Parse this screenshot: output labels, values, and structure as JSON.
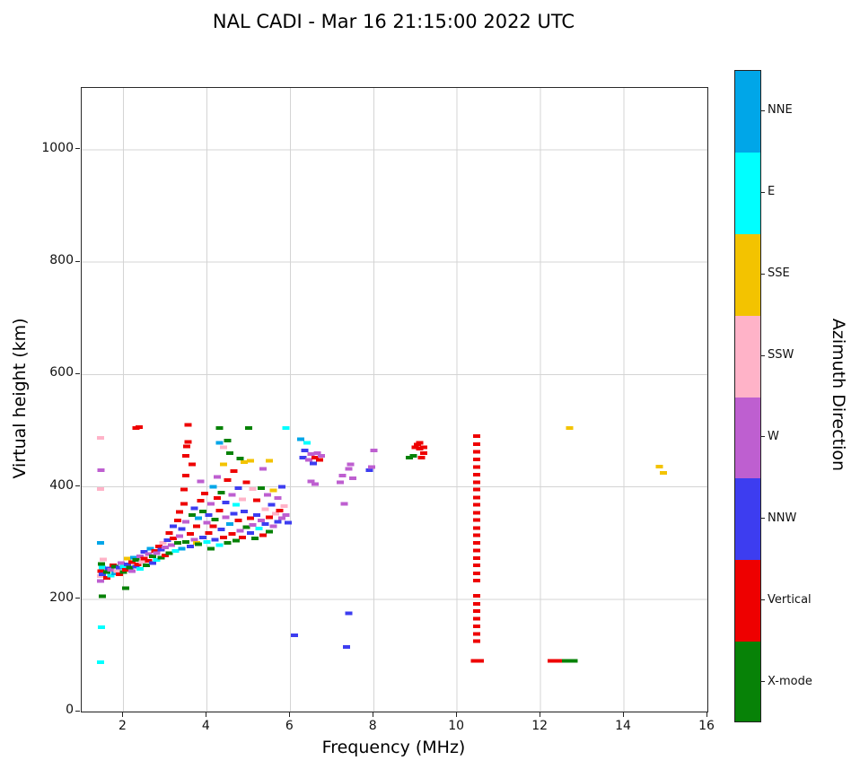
{
  "chart_data": {
    "type": "scatter",
    "title": "NAL CADI - Mar 16 21:15:00 2022 UTC",
    "xlabel": "Frequency (MHz)",
    "ylabel": "Virtual height (km)",
    "xlim": [
      1,
      16
    ],
    "ylim": [
      0,
      1110
    ],
    "xticks": [
      2,
      4,
      6,
      8,
      10,
      12,
      14,
      16
    ],
    "yticks": [
      0,
      200,
      400,
      600,
      800,
      1000
    ],
    "grid": true,
    "marker": "horizontal-dash",
    "legend": {
      "title": "Azimuth Direction",
      "position": "right-colorbar",
      "entries": [
        {
          "label": "NNE",
          "color": "#00A6E8"
        },
        {
          "label": "E",
          "color": "#00FFFF"
        },
        {
          "label": "SSE",
          "color": "#F3C300"
        },
        {
          "label": "SSW",
          "color": "#FFB3C8"
        },
        {
          "label": "W",
          "color": "#BE5FD0"
        },
        {
          "label": "NNW",
          "color": "#3D3DF0"
        },
        {
          "label": "Vertical",
          "color": "#EE0000"
        },
        {
          "label": "X-mode",
          "color": "#078207"
        }
      ]
    },
    "points": [
      [
        1.45,
        88,
        "E"
      ],
      [
        1.47,
        150,
        "E"
      ],
      [
        1.5,
        205,
        "X-mode"
      ],
      [
        1.45,
        232,
        "W"
      ],
      [
        1.45,
        241,
        "SSW"
      ],
      [
        1.46,
        250,
        "Vertical"
      ],
      [
        1.5,
        244,
        "NNW"
      ],
      [
        1.5,
        256,
        "E"
      ],
      [
        1.47,
        263,
        "X-mode"
      ],
      [
        1.52,
        271,
        "SSW"
      ],
      [
        1.45,
        300,
        "NNE"
      ],
      [
        1.45,
        396,
        "SSW"
      ],
      [
        1.46,
        430,
        "W"
      ],
      [
        1.45,
        487,
        "SSW"
      ],
      [
        1.6,
        238,
        "Vertical"
      ],
      [
        1.6,
        248,
        "X-mode"
      ],
      [
        1.65,
        255,
        "NNW"
      ],
      [
        1.7,
        242,
        "E"
      ],
      [
        1.7,
        252,
        "W"
      ],
      [
        1.75,
        260,
        "Vertical"
      ],
      [
        1.8,
        246,
        "NNE"
      ],
      [
        1.8,
        258,
        "X-mode"
      ],
      [
        1.85,
        250,
        "SSW"
      ],
      [
        1.9,
        244,
        "Vertical"
      ],
      [
        1.9,
        256,
        "NNW"
      ],
      [
        1.95,
        264,
        "W"
      ],
      [
        2.0,
        248,
        "X-mode"
      ],
      [
        2.0,
        258,
        "E"
      ],
      [
        2.05,
        220,
        "X-mode"
      ],
      [
        2.05,
        252,
        "Vertical"
      ],
      [
        2.1,
        262,
        "NNW"
      ],
      [
        2.1,
        272,
        "SSE"
      ],
      [
        2.15,
        256,
        "X-mode"
      ],
      [
        2.2,
        250,
        "W"
      ],
      [
        2.2,
        266,
        "Vertical"
      ],
      [
        2.25,
        274,
        "NNE"
      ],
      [
        2.3,
        258,
        "NNW"
      ],
      [
        2.3,
        270,
        "X-mode"
      ],
      [
        2.3,
        505,
        "Vertical"
      ],
      [
        2.38,
        506,
        "Vertical"
      ],
      [
        2.35,
        262,
        "Vertical"
      ],
      [
        2.4,
        276,
        "W"
      ],
      [
        2.4,
        254,
        "E"
      ],
      [
        2.45,
        266,
        "SSW"
      ],
      [
        2.5,
        272,
        "Vertical"
      ],
      [
        2.5,
        284,
        "NNW"
      ],
      [
        2.55,
        260,
        "X-mode"
      ],
      [
        2.6,
        268,
        "Vertical"
      ],
      [
        2.6,
        280,
        "W"
      ],
      [
        2.65,
        290,
        "NNE"
      ],
      [
        2.7,
        264,
        "NNW"
      ],
      [
        2.7,
        276,
        "X-mode"
      ],
      [
        2.75,
        286,
        "Vertical"
      ],
      [
        2.8,
        270,
        "E"
      ],
      [
        2.8,
        282,
        "W"
      ],
      [
        2.85,
        294,
        "Vertical"
      ],
      [
        2.9,
        274,
        "X-mode"
      ],
      [
        2.9,
        288,
        "NNW"
      ],
      [
        2.95,
        300,
        "SSW"
      ],
      [
        3.0,
        278,
        "Vertical"
      ],
      [
        3.0,
        292,
        "W"
      ],
      [
        3.05,
        305,
        "NNW"
      ],
      [
        3.1,
        282,
        "X-mode"
      ],
      [
        3.1,
        318,
        "Vertical"
      ],
      [
        3.15,
        296,
        "W"
      ],
      [
        3.2,
        308,
        "Vertical"
      ],
      [
        3.2,
        330,
        "NNW"
      ],
      [
        3.25,
        286,
        "E"
      ],
      [
        3.3,
        300,
        "X-mode"
      ],
      [
        3.3,
        340,
        "Vertical"
      ],
      [
        3.35,
        312,
        "W"
      ],
      [
        3.35,
        355,
        "Vertical"
      ],
      [
        3.4,
        290,
        "NNE"
      ],
      [
        3.4,
        325,
        "NNW"
      ],
      [
        3.45,
        370,
        "Vertical"
      ],
      [
        3.45,
        395,
        "Vertical"
      ],
      [
        3.5,
        302,
        "X-mode"
      ],
      [
        3.5,
        338,
        "W"
      ],
      [
        3.5,
        420,
        "Vertical"
      ],
      [
        3.5,
        455,
        "Vertical"
      ],
      [
        3.52,
        472,
        "Vertical"
      ],
      [
        3.55,
        480,
        "Vertical"
      ],
      [
        3.55,
        510,
        "Vertical"
      ],
      [
        3.6,
        294,
        "NNW"
      ],
      [
        3.6,
        316,
        "Vertical"
      ],
      [
        3.65,
        350,
        "X-mode"
      ],
      [
        3.65,
        440,
        "Vertical"
      ],
      [
        3.7,
        306,
        "W"
      ],
      [
        3.7,
        362,
        "NNW"
      ],
      [
        3.75,
        300,
        "SSE"
      ],
      [
        3.75,
        330,
        "Vertical"
      ],
      [
        3.8,
        298,
        "X-mode"
      ],
      [
        3.8,
        344,
        "NNE"
      ],
      [
        3.85,
        375,
        "Vertical"
      ],
      [
        3.85,
        410,
        "W"
      ],
      [
        3.9,
        310,
        "NNW"
      ],
      [
        3.9,
        356,
        "X-mode"
      ],
      [
        3.95,
        388,
        "Vertical"
      ],
      [
        4.0,
        302,
        "E"
      ],
      [
        4.0,
        336,
        "W"
      ],
      [
        4.05,
        318,
        "Vertical"
      ],
      [
        4.05,
        350,
        "NNW"
      ],
      [
        4.1,
        290,
        "X-mode"
      ],
      [
        4.1,
        370,
        "W"
      ],
      [
        4.15,
        330,
        "Vertical"
      ],
      [
        4.15,
        400,
        "NNE"
      ],
      [
        4.2,
        306,
        "NNW"
      ],
      [
        4.2,
        342,
        "X-mode"
      ],
      [
        4.25,
        380,
        "Vertical"
      ],
      [
        4.25,
        418,
        "W"
      ],
      [
        4.3,
        296,
        "E"
      ],
      [
        4.3,
        358,
        "Vertical"
      ],
      [
        4.3,
        478,
        "NNE"
      ],
      [
        4.3,
        505,
        "X-mode"
      ],
      [
        4.35,
        324,
        "NNW"
      ],
      [
        4.35,
        390,
        "X-mode"
      ],
      [
        4.4,
        310,
        "Vertical"
      ],
      [
        4.4,
        440,
        "SSE"
      ],
      [
        4.4,
        470,
        "SSW"
      ],
      [
        4.45,
        346,
        "W"
      ],
      [
        4.45,
        372,
        "NNW"
      ],
      [
        4.5,
        300,
        "X-mode"
      ],
      [
        4.5,
        412,
        "Vertical"
      ],
      [
        4.5,
        482,
        "X-mode"
      ],
      [
        4.55,
        334,
        "NNE"
      ],
      [
        4.55,
        460,
        "X-mode"
      ],
      [
        4.6,
        316,
        "Vertical"
      ],
      [
        4.6,
        386,
        "W"
      ],
      [
        4.65,
        352,
        "NNW"
      ],
      [
        4.65,
        428,
        "Vertical"
      ],
      [
        4.7,
        304,
        "X-mode"
      ],
      [
        4.7,
        368,
        "E"
      ],
      [
        4.75,
        340,
        "Vertical"
      ],
      [
        4.75,
        398,
        "NNW"
      ],
      [
        4.8,
        322,
        "W"
      ],
      [
        4.8,
        450,
        "X-mode"
      ],
      [
        4.85,
        310,
        "Vertical"
      ],
      [
        4.85,
        378,
        "SSW"
      ],
      [
        4.9,
        356,
        "NNW"
      ],
      [
        4.9,
        444,
        "SSE"
      ],
      [
        4.95,
        328,
        "X-mode"
      ],
      [
        4.95,
        408,
        "Vertical"
      ],
      [
        5.0,
        505,
        "X-mode"
      ],
      [
        5.05,
        318,
        "NNW"
      ],
      [
        5.05,
        344,
        "Vertical"
      ],
      [
        5.05,
        446,
        "SSE"
      ],
      [
        5.1,
        332,
        "W"
      ],
      [
        5.1,
        396,
        "SSW"
      ],
      [
        5.15,
        308,
        "X-mode"
      ],
      [
        5.2,
        350,
        "NNW"
      ],
      [
        5.2,
        376,
        "Vertical"
      ],
      [
        5.25,
        326,
        "E"
      ],
      [
        5.3,
        340,
        "W"
      ],
      [
        5.3,
        398,
        "X-mode"
      ],
      [
        5.35,
        314,
        "Vertical"
      ],
      [
        5.35,
        432,
        "W"
      ],
      [
        5.4,
        334,
        "NNW"
      ],
      [
        5.4,
        360,
        "SSW"
      ],
      [
        5.45,
        386,
        "W"
      ],
      [
        5.5,
        320,
        "X-mode"
      ],
      [
        5.5,
        346,
        "Vertical"
      ],
      [
        5.5,
        446,
        "SSE"
      ],
      [
        5.55,
        368,
        "NNW"
      ],
      [
        5.6,
        330,
        "W"
      ],
      [
        5.6,
        394,
        "SSE"
      ],
      [
        5.65,
        352,
        "SSW"
      ],
      [
        5.7,
        338,
        "NNW"
      ],
      [
        5.7,
        380,
        "W"
      ],
      [
        5.75,
        358,
        "Vertical"
      ],
      [
        5.8,
        344,
        "W"
      ],
      [
        5.8,
        400,
        "NNW"
      ],
      [
        5.85,
        366,
        "SSW"
      ],
      [
        5.9,
        350,
        "W"
      ],
      [
        5.9,
        505,
        "E"
      ],
      [
        5.95,
        336,
        "NNW"
      ],
      [
        6.1,
        136,
        "NNW"
      ],
      [
        6.25,
        485,
        "NNE"
      ],
      [
        6.3,
        452,
        "NNW"
      ],
      [
        6.35,
        465,
        "NNW"
      ],
      [
        6.4,
        478,
        "E"
      ],
      [
        6.45,
        448,
        "W"
      ],
      [
        6.5,
        410,
        "W"
      ],
      [
        6.5,
        458,
        "W"
      ],
      [
        6.55,
        442,
        "NNW"
      ],
      [
        6.6,
        405,
        "W"
      ],
      [
        6.6,
        452,
        "Vertical"
      ],
      [
        6.65,
        460,
        "W"
      ],
      [
        6.7,
        448,
        "Vertical"
      ],
      [
        6.75,
        455,
        "W"
      ],
      [
        7.2,
        408,
        "W"
      ],
      [
        7.25,
        420,
        "W"
      ],
      [
        7.3,
        370,
        "W"
      ],
      [
        7.35,
        115,
        "NNW"
      ],
      [
        7.4,
        175,
        "NNW"
      ],
      [
        7.4,
        432,
        "W"
      ],
      [
        7.45,
        440,
        "W"
      ],
      [
        7.5,
        415,
        "W"
      ],
      [
        7.9,
        430,
        "NNW"
      ],
      [
        7.95,
        435,
        "W"
      ],
      [
        8.0,
        465,
        "W"
      ],
      [
        8.85,
        452,
        "X-mode"
      ],
      [
        8.95,
        455,
        "X-mode"
      ],
      [
        9.0,
        470,
        "Vertical"
      ],
      [
        9.05,
        475,
        "Vertical"
      ],
      [
        9.1,
        468,
        "Vertical"
      ],
      [
        9.1,
        478,
        "Vertical"
      ],
      [
        9.15,
        452,
        "Vertical"
      ],
      [
        9.2,
        460,
        "Vertical"
      ],
      [
        9.2,
        470,
        "Vertical"
      ],
      [
        10.42,
        90,
        "Vertical"
      ],
      [
        10.55,
        90,
        "Vertical"
      ],
      [
        10.47,
        125,
        "Vertical"
      ],
      [
        10.47,
        138,
        "Vertical"
      ],
      [
        10.47,
        152,
        "Vertical"
      ],
      [
        10.47,
        165,
        "Vertical"
      ],
      [
        10.47,
        179,
        "Vertical"
      ],
      [
        10.47,
        192,
        "Vertical"
      ],
      [
        10.47,
        206,
        "Vertical"
      ],
      [
        10.47,
        233,
        "Vertical"
      ],
      [
        10.47,
        246,
        "Vertical"
      ],
      [
        10.47,
        260,
        "Vertical"
      ],
      [
        10.47,
        273,
        "Vertical"
      ],
      [
        10.47,
        287,
        "Vertical"
      ],
      [
        10.47,
        300,
        "Vertical"
      ],
      [
        10.47,
        314,
        "Vertical"
      ],
      [
        10.47,
        327,
        "Vertical"
      ],
      [
        10.47,
        341,
        "Vertical"
      ],
      [
        10.47,
        354,
        "Vertical"
      ],
      [
        10.47,
        368,
        "Vertical"
      ],
      [
        10.47,
        381,
        "Vertical"
      ],
      [
        10.47,
        395,
        "Vertical"
      ],
      [
        10.47,
        408,
        "Vertical"
      ],
      [
        10.47,
        422,
        "Vertical"
      ],
      [
        10.47,
        435,
        "Vertical"
      ],
      [
        10.47,
        449,
        "Vertical"
      ],
      [
        10.47,
        462,
        "Vertical"
      ],
      [
        10.47,
        476,
        "Vertical"
      ],
      [
        10.47,
        490,
        "Vertical"
      ],
      [
        12.25,
        90,
        "Vertical"
      ],
      [
        12.35,
        90,
        "Vertical"
      ],
      [
        12.45,
        90,
        "Vertical"
      ],
      [
        12.6,
        90,
        "X-mode"
      ],
      [
        12.7,
        90,
        "X-mode"
      ],
      [
        12.8,
        90,
        "X-mode"
      ],
      [
        12.7,
        505,
        "SSE"
      ],
      [
        14.85,
        436,
        "SSE"
      ],
      [
        14.95,
        425,
        "SSE"
      ]
    ]
  }
}
